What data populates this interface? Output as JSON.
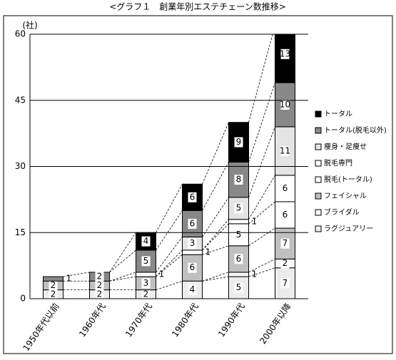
{
  "chart_data": {
    "type": "bar",
    "stacked": true,
    "title": "<グラフ１　創業年別エステチェーン数推移>",
    "y_label": "(社)",
    "categories": [
      "1950年代以前",
      "1960年代",
      "1970年代",
      "1980年代",
      "1990年代",
      "2000年以降"
    ],
    "series": [
      {
        "name": "ラグジュアリー",
        "color": "#ececec",
        "values": [
          2,
          2,
          2,
          4,
          5,
          7
        ]
      },
      {
        "name": "ブライダル",
        "color": "#f7f7f7",
        "values": [
          null,
          null,
          null,
          null,
          1,
          2
        ]
      },
      {
        "name": "フェイシャル",
        "color": "#c0c0c0",
        "values": [
          2,
          2,
          3,
          6,
          6,
          7
        ]
      },
      {
        "name": "脱毛(トータル)",
        "color": "#ffffff",
        "values": [
          null,
          null,
          null,
          1,
          5,
          6
        ]
      },
      {
        "name": "脱毛専門",
        "color": "#ffffff",
        "values": [
          null,
          null,
          1,
          null,
          1,
          6
        ]
      },
      {
        "name": "痩身・足痩せ",
        "color": "#e4e4e4",
        "values": [
          null,
          null,
          null,
          3,
          5,
          11
        ]
      },
      {
        "name": "トータル(脱毛以外)",
        "color": "#888888",
        "values": [
          1,
          2,
          5,
          6,
          8,
          10
        ]
      },
      {
        "name": "トータル",
        "color": "#000000",
        "values": [
          null,
          null,
          4,
          6,
          9,
          13
        ]
      }
    ],
    "ylim": [
      0,
      60
    ],
    "yticks": [
      0,
      15,
      30,
      45,
      60
    ],
    "grid": true,
    "legend": "right"
  }
}
